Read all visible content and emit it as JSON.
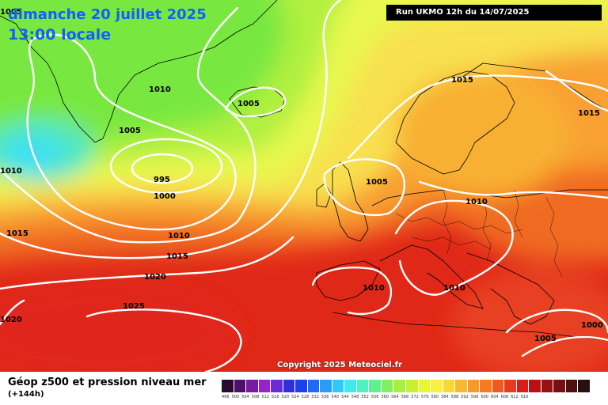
{
  "header": {
    "date": "dimanche 20 juillet 2025",
    "time": "13:00 locale",
    "run": "Run UKMO 12h du 14/07/2025"
  },
  "map": {
    "copyright": "Copyright 2025 Meteociel.fr",
    "isobar_labels": [
      "1005",
      "1010",
      "1005",
      "1005",
      "995",
      "1000",
      "1010",
      "1015",
      "1010",
      "1015",
      "1020",
      "1025",
      "1020",
      "1015",
      "1015",
      "1005",
      "1010",
      "1010",
      "1010",
      "1000",
      "1005"
    ]
  },
  "legend": {
    "title": "Géop z500 et pression niveau mer",
    "subtitle": "(+144h)",
    "values": [
      "496",
      "500",
      "504",
      "508",
      "512",
      "516",
      "520",
      "524",
      "528",
      "532",
      "536",
      "540",
      "544",
      "548",
      "552",
      "556",
      "560",
      "564",
      "568",
      "572",
      "576",
      "580",
      "584",
      "588",
      "592",
      "596",
      "600",
      "604",
      "608",
      "612",
      "616"
    ],
    "colors": [
      "#2a0a30",
      "#50106a",
      "#7a1a9e",
      "#9a22c8",
      "#6a2ad8",
      "#3030d8",
      "#1a40f0",
      "#1e6cf6",
      "#2a9cf8",
      "#30c8f8",
      "#40e8f0",
      "#50f0c0",
      "#60f090",
      "#80f060",
      "#a8f040",
      "#c8f030",
      "#e8f830",
      "#f8f040",
      "#f8d838",
      "#f8b830",
      "#f89a28",
      "#f87a20",
      "#f05a20",
      "#e83a1c",
      "#d81e18",
      "#b81014",
      "#981010",
      "#781012",
      "#501010",
      "#281010"
    ]
  }
}
